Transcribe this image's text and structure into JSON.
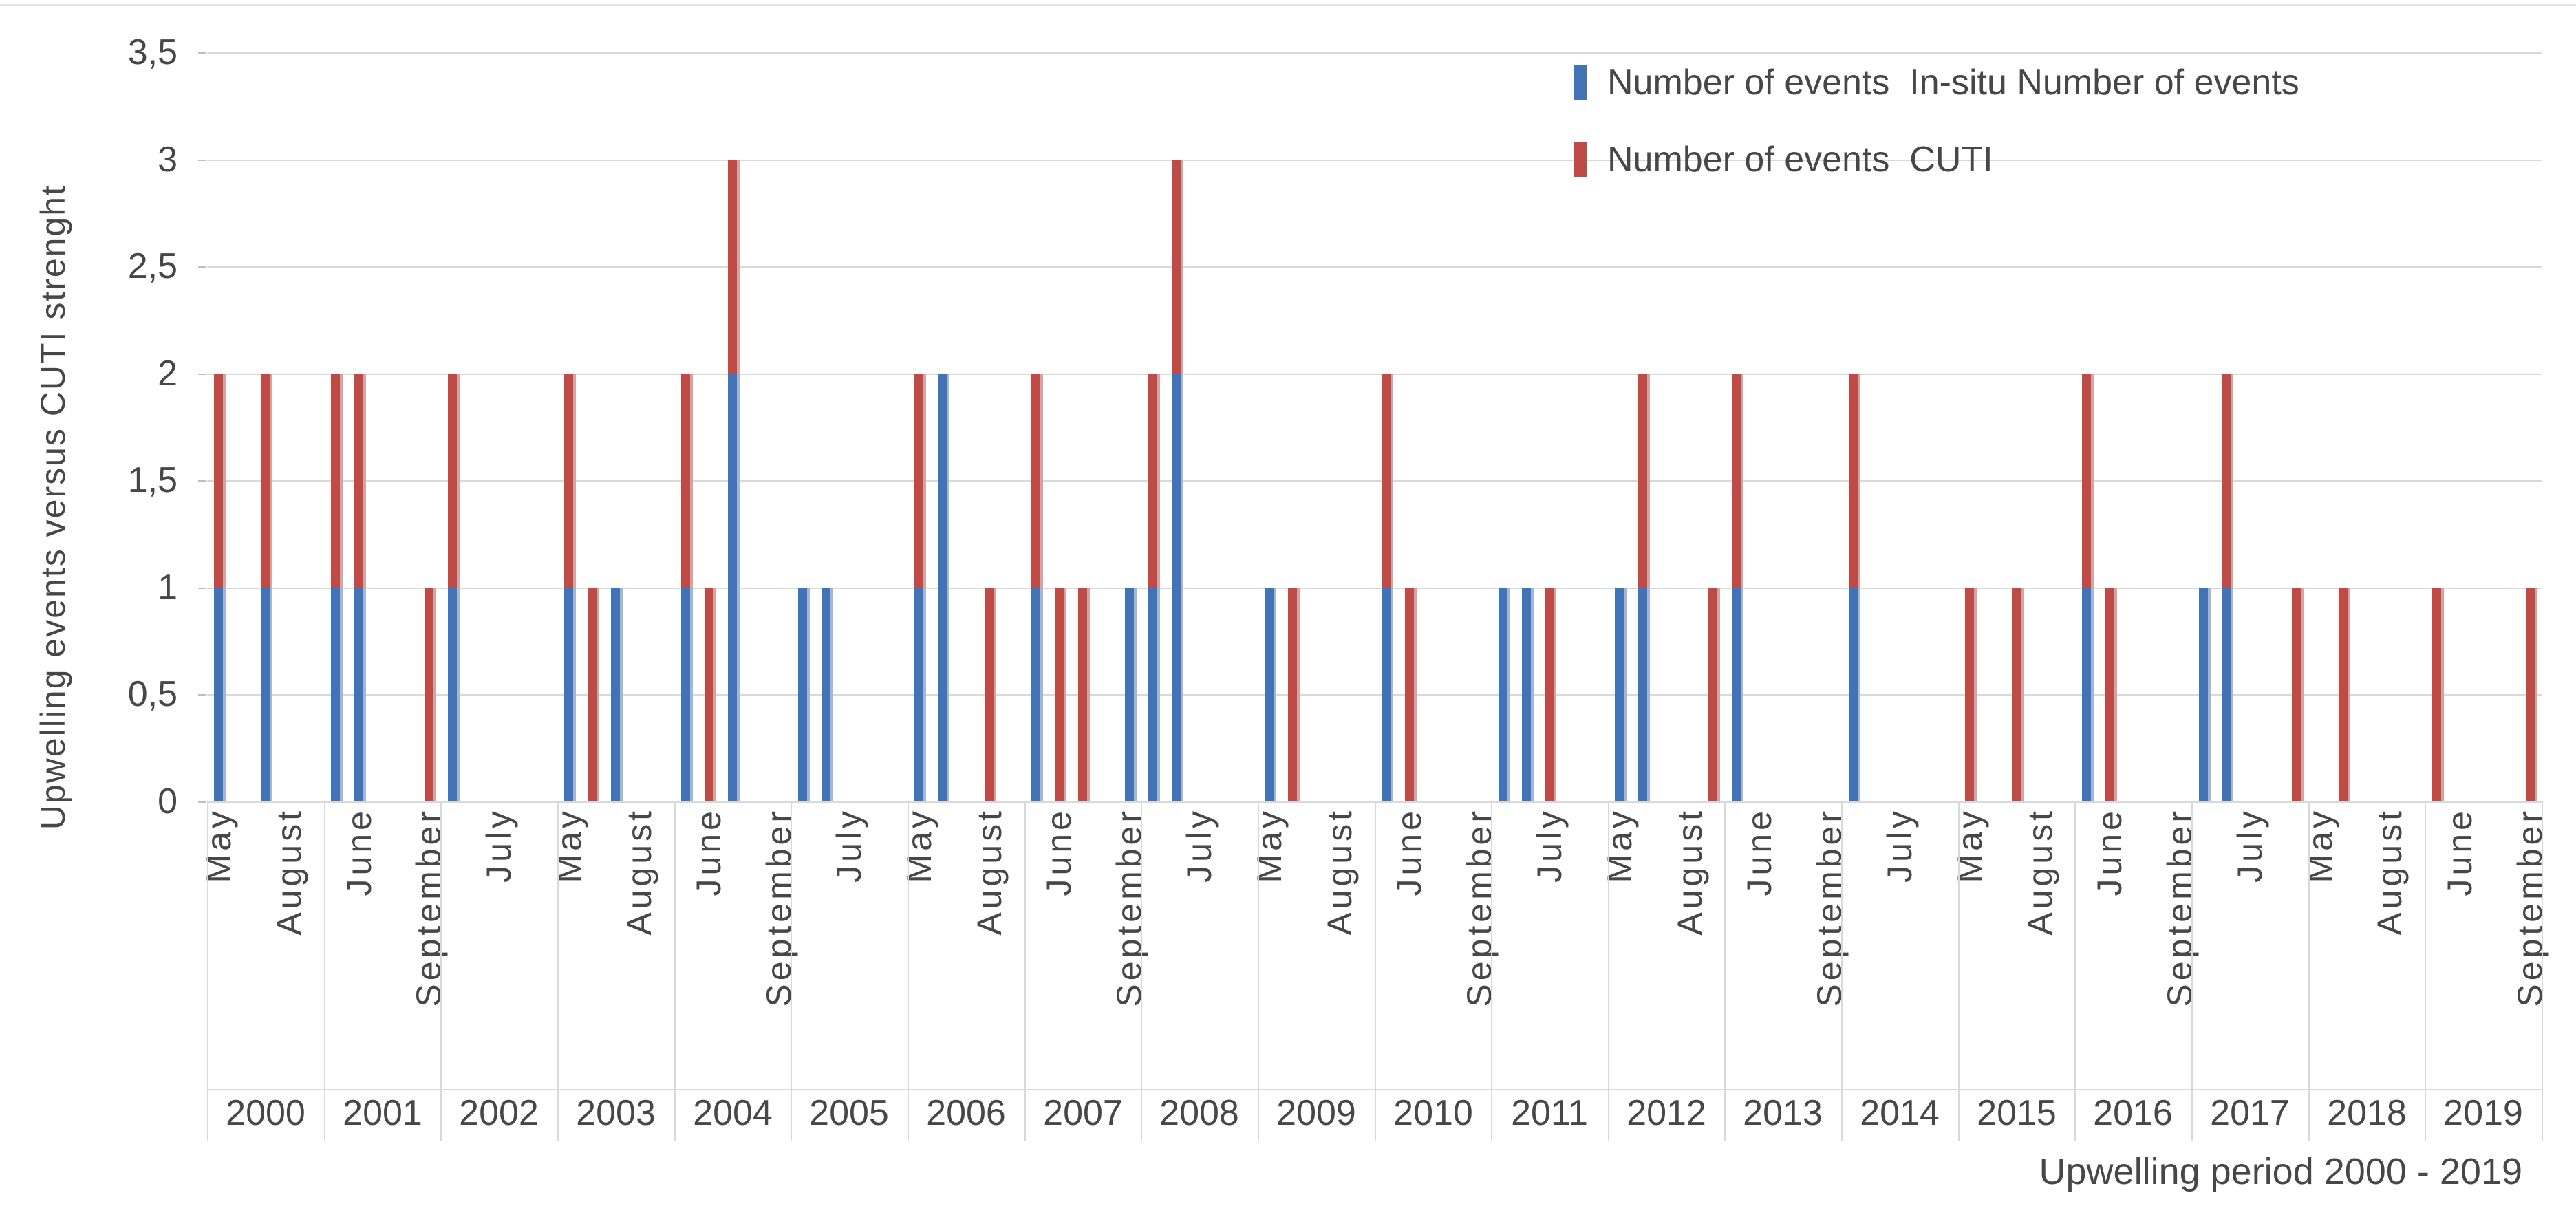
{
  "chart_data": {
    "type": "bar",
    "stacked": true,
    "x_axis_title": "Upwelling period 2000 - 2019",
    "y_axis_title": "Upwelling events versus CUTI  strenght",
    "y_ticks_top_to_bottom": [
      "3,5",
      "3",
      "2,5",
      "2",
      "1,5",
      "1",
      "0,5",
      "0"
    ],
    "ylim": [
      0,
      3.5
    ],
    "gridline_step": 0.5,
    "grid": "horizontal-on",
    "legend_position": "top-right-inside",
    "month_slots": [
      "May",
      "June",
      "July",
      "August",
      "September"
    ],
    "month_label_every": 3,
    "colors": {
      "insitu": "#4273b6",
      "cuti": "#bf4b47",
      "gridline": "#d9d9d9"
    },
    "legend": [
      {
        "series": "insitu",
        "color": "#4273b6",
        "label": "Number of events  In-situ Number of events"
      },
      {
        "series": "cuti",
        "color": "#bf4b47",
        "label": "Number of events  CUTI"
      }
    ],
    "years": [
      {
        "year": "2000",
        "events": [
          {
            "month": "May",
            "insitu": 1,
            "cuti": 1
          },
          {
            "month": "July",
            "insitu": 1,
            "cuti": 1
          }
        ]
      },
      {
        "year": "2001",
        "events": [
          {
            "month": "May",
            "insitu": 1,
            "cuti": 1
          },
          {
            "month": "June",
            "insitu": 1,
            "cuti": 1
          },
          {
            "month": "September",
            "insitu": 0,
            "cuti": 1
          }
        ]
      },
      {
        "year": "2002",
        "events": [
          {
            "month": "May",
            "insitu": 1,
            "cuti": 1
          }
        ]
      },
      {
        "year": "2003",
        "events": [
          {
            "month": "May",
            "insitu": 1,
            "cuti": 1
          },
          {
            "month": "June",
            "insitu": 0,
            "cuti": 1
          },
          {
            "month": "July",
            "insitu": 1,
            "cuti": 0
          }
        ]
      },
      {
        "year": "2004",
        "events": [
          {
            "month": "May",
            "insitu": 1,
            "cuti": 1
          },
          {
            "month": "June",
            "insitu": 0,
            "cuti": 1
          },
          {
            "month": "July",
            "insitu": 2,
            "cuti": 1
          }
        ]
      },
      {
        "year": "2005",
        "events": [
          {
            "month": "May",
            "insitu": 1,
            "cuti": 0
          },
          {
            "month": "June",
            "insitu": 1,
            "cuti": 0
          }
        ]
      },
      {
        "year": "2006",
        "events": [
          {
            "month": "May",
            "insitu": 1,
            "cuti": 1
          },
          {
            "month": "June",
            "insitu": 2,
            "cuti": 0
          },
          {
            "month": "August",
            "insitu": 0,
            "cuti": 1
          }
        ]
      },
      {
        "year": "2007",
        "events": [
          {
            "month": "May",
            "insitu": 1,
            "cuti": 1
          },
          {
            "month": "June",
            "insitu": 0,
            "cuti": 1
          },
          {
            "month": "July",
            "insitu": 0,
            "cuti": 1
          },
          {
            "month": "September",
            "insitu": 1,
            "cuti": 0
          }
        ]
      },
      {
        "year": "2008",
        "events": [
          {
            "month": "May",
            "insitu": 1,
            "cuti": 1
          },
          {
            "month": "June",
            "insitu": 2,
            "cuti": 1
          }
        ]
      },
      {
        "year": "2009",
        "events": [
          {
            "month": "May",
            "insitu": 1,
            "cuti": 0
          },
          {
            "month": "June",
            "insitu": 0,
            "cuti": 1
          }
        ]
      },
      {
        "year": "2010",
        "events": [
          {
            "month": "May",
            "insitu": 1,
            "cuti": 1
          },
          {
            "month": "June",
            "insitu": 0,
            "cuti": 1
          }
        ]
      },
      {
        "year": "2011",
        "events": [
          {
            "month": "May",
            "insitu": 1,
            "cuti": 0
          },
          {
            "month": "June",
            "insitu": 1,
            "cuti": 0
          },
          {
            "month": "July",
            "insitu": 0,
            "cuti": 1
          }
        ]
      },
      {
        "year": "2012",
        "events": [
          {
            "month": "May",
            "insitu": 1,
            "cuti": 0
          },
          {
            "month": "June",
            "insitu": 1,
            "cuti": 1
          },
          {
            "month": "September",
            "insitu": 0,
            "cuti": 1
          }
        ]
      },
      {
        "year": "2013",
        "events": [
          {
            "month": "May",
            "insitu": 1,
            "cuti": 1
          }
        ]
      },
      {
        "year": "2014",
        "events": [
          {
            "month": "May",
            "insitu": 1,
            "cuti": 1
          }
        ]
      },
      {
        "year": "2015",
        "events": [
          {
            "month": "May",
            "insitu": 0,
            "cuti": 1
          },
          {
            "month": "July",
            "insitu": 0,
            "cuti": 1
          }
        ]
      },
      {
        "year": "2016",
        "events": [
          {
            "month": "May",
            "insitu": 1,
            "cuti": 1
          },
          {
            "month": "June",
            "insitu": 0,
            "cuti": 1
          }
        ]
      },
      {
        "year": "2017",
        "events": [
          {
            "month": "May",
            "insitu": 1,
            "cuti": 0
          },
          {
            "month": "June",
            "insitu": 1,
            "cuti": 1
          },
          {
            "month": "September",
            "insitu": 0,
            "cuti": 1
          }
        ]
      },
      {
        "year": "2018",
        "events": [
          {
            "month": "June",
            "insitu": 0,
            "cuti": 1
          }
        ]
      },
      {
        "year": "2019",
        "events": [
          {
            "month": "May",
            "insitu": 0,
            "cuti": 1
          },
          {
            "month": "September",
            "insitu": 0,
            "cuti": 1
          }
        ]
      }
    ]
  }
}
